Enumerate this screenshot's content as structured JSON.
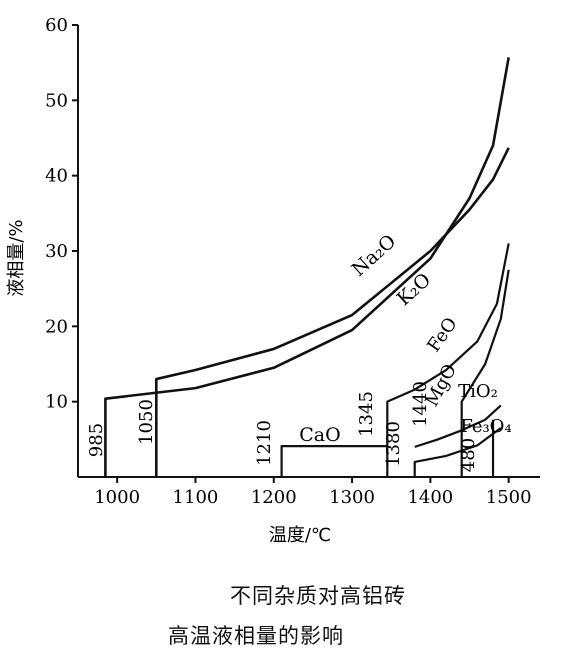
{
  "chart_data": {
    "type": "line",
    "xlabel": "温度/℃",
    "ylabel": "液相量/%",
    "xlim": [
      950,
      1540
    ],
    "ylim": [
      0,
      60
    ],
    "xticks": [
      1000,
      1100,
      1200,
      1300,
      1400,
      1500
    ],
    "yticks": [
      10,
      20,
      30,
      40,
      50,
      60
    ],
    "grid": false,
    "series": [
      {
        "name": "Na₂O",
        "points": [
          [
            985,
            0
          ],
          [
            985,
            10.4
          ],
          [
            1100,
            11.8
          ],
          [
            1200,
            14.5
          ],
          [
            1300,
            19.5
          ],
          [
            1400,
            29
          ],
          [
            1450,
            37
          ],
          [
            1480,
            44
          ],
          [
            1500,
            55.7
          ]
        ]
      },
      {
        "name": "K₂O",
        "points": [
          [
            1050,
            0
          ],
          [
            1050,
            13
          ],
          [
            1100,
            14.2
          ],
          [
            1200,
            17
          ],
          [
            1300,
            21.5
          ],
          [
            1400,
            30
          ],
          [
            1450,
            35.5
          ],
          [
            1480,
            39.5
          ],
          [
            1500,
            43.7
          ]
        ]
      },
      {
        "name": "FeO",
        "points": [
          [
            1210,
            0
          ],
          [
            1210,
            4.1
          ],
          [
            1345,
            4.1
          ]
        ]
      },
      {
        "name": "CaO",
        "points": [
          [
            1345,
            0
          ],
          [
            1345,
            10
          ],
          [
            1380,
            11.6
          ],
          [
            1420,
            14.2
          ],
          [
            1460,
            18
          ],
          [
            1485,
            23
          ],
          [
            1500,
            31
          ]
        ]
      },
      {
        "name": "MgO",
        "points": [
          [
            1440,
            0
          ],
          [
            1440,
            10
          ],
          [
            1470,
            15
          ],
          [
            1490,
            21
          ],
          [
            1500,
            27.5
          ]
        ]
      },
      {
        "name": "TiO₂",
        "points": [
          [
            1380,
            4
          ],
          [
            1410,
            5
          ],
          [
            1440,
            6.2
          ],
          [
            1470,
            7.6
          ],
          [
            1490,
            9.5
          ]
        ]
      },
      {
        "name": "Fe₃O₄",
        "points": [
          [
            1380,
            0
          ],
          [
            1380,
            2
          ],
          [
            1420,
            2.8
          ],
          [
            1460,
            4.2
          ],
          [
            1490,
            6.5
          ]
        ]
      },
      {
        "name": "480",
        "points": [
          [
            1480,
            0
          ],
          [
            1480,
            7.6
          ]
        ]
      }
    ],
    "annotations": [
      "985",
      "1050",
      "1210",
      "1345",
      "1380",
      "1440",
      "480"
    ],
    "caption": [
      "不同杂质对高铝砖",
      "高温液相量的影响"
    ]
  }
}
